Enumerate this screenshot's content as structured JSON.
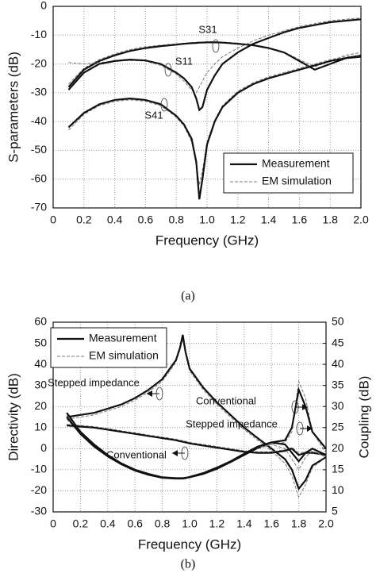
{
  "chart_data": [
    {
      "type": "line",
      "caption": "(a)",
      "xlabel": "Frequency (GHz)",
      "ylabel": "S-parameters (dB)",
      "xlim": [
        0,
        2
      ],
      "ylim": [
        -70,
        0
      ],
      "xticks": [
        0,
        0.2,
        0.4,
        0.6,
        0.8,
        {
          "value": 1,
          "label": "1.0"
        },
        1.2,
        1.4,
        1.6,
        1.8,
        {
          "value": 2,
          "label": "2.0"
        }
      ],
      "yticks": [
        0,
        -10,
        -20,
        -30,
        -40,
        -50,
        -60,
        -70
      ],
      "grid": true,
      "legend": {
        "position": "lower right",
        "entries": [
          {
            "label": "Measurement",
            "color": "#111111",
            "dashed": false
          },
          {
            "label": "EM simulation",
            "color": "#777777",
            "dashed": true
          }
        ]
      },
      "x": [
        0.1,
        0.2,
        0.3,
        0.4,
        0.5,
        0.6,
        0.7,
        0.8,
        0.85,
        0.9,
        0.93,
        0.95,
        0.97,
        1.0,
        1.05,
        1.1,
        1.2,
        1.3,
        1.4,
        1.5,
        1.6,
        1.7,
        1.8,
        1.9,
        2.0
      ],
      "series": [
        {
          "name": "S31",
          "measurement": [
            -28,
            -22,
            -19,
            -17,
            -15.5,
            -14.5,
            -13.8,
            -13.3,
            -13,
            -12.8,
            -12.7,
            -12.6,
            -12.6,
            -12.5,
            -12.5,
            -12.6,
            -13,
            -13.5,
            -14.5,
            -16,
            -19,
            -22,
            -20,
            -18,
            -17
          ],
          "simulation": [
            -27,
            -21.5,
            -18.5,
            -16.5,
            -15,
            -14,
            -13.5,
            -13,
            -12.8,
            -12.6,
            -12.5,
            -12.4,
            -12.4,
            -12.3,
            -12.3,
            -12.4,
            -12.8,
            -13.3,
            -14.3,
            -15.8,
            -18.5,
            -21,
            -19,
            -17,
            -16
          ]
        },
        {
          "name": "S11",
          "measurement": [
            -29,
            -23,
            -20,
            -19,
            -18.5,
            -18.8,
            -20,
            -23,
            -25,
            -28,
            -32,
            -36,
            -35,
            -29,
            -24,
            -20,
            -16,
            -13,
            -11,
            -9,
            -7.5,
            -6.5,
            -5.5,
            -5,
            -4.5
          ],
          "simulation": [
            -19.5,
            -20,
            -19.5,
            -19,
            -18.8,
            -19,
            -20.5,
            -23.5,
            -26,
            -29,
            -30,
            -28,
            -26,
            -23,
            -20,
            -17.5,
            -14.5,
            -12,
            -10,
            -8.5,
            -7,
            -6,
            -5,
            -4.5,
            -4
          ]
        },
        {
          "name": "S41",
          "measurement": [
            -42,
            -37,
            -34,
            -32.5,
            -32,
            -32.5,
            -34,
            -38,
            -41,
            -46,
            -54,
            -67,
            -60,
            -48,
            -40,
            -35,
            -30,
            -27,
            -25,
            -23.5,
            -22,
            -20.5,
            -19,
            -18,
            -17.5
          ],
          "simulation": [
            -43,
            -37.5,
            -34.5,
            -33,
            -32.5,
            -33,
            -34.5,
            -38.5,
            -41.5,
            -47,
            -55,
            -62,
            -57,
            -47,
            -39.5,
            -34.5,
            -29.5,
            -26.5,
            -24.5,
            -23,
            -21.5,
            -20,
            -18.5,
            -17.5,
            -17
          ]
        }
      ]
    },
    {
      "type": "line",
      "caption": "(b)",
      "xlabel": "Frequency (GHz)",
      "ylabel": "Directivity (dB)",
      "y2label": "Coupling (dB)",
      "xlim": [
        0,
        2
      ],
      "ylim": [
        -30,
        60
      ],
      "y2lim": [
        5,
        50
      ],
      "xticks": [
        0,
        0.2,
        0.4,
        0.6,
        0.8,
        {
          "value": 1,
          "label": "1.0"
        },
        1.2,
        1.4,
        1.6,
        1.8,
        {
          "value": 2,
          "label": "2.0"
        }
      ],
      "yticks": [
        -30,
        -20,
        -10,
        0,
        10,
        20,
        30,
        40,
        50,
        60
      ],
      "y2ticks": [
        5,
        10,
        15,
        20,
        25,
        30,
        35,
        40,
        45,
        50
      ],
      "grid": true,
      "legend": {
        "position": "upper left",
        "entries": [
          {
            "label": "Measurement",
            "color": "#111111",
            "dashed": false
          },
          {
            "label": "EM simulation",
            "color": "#777777",
            "dashed": true
          }
        ]
      },
      "x": [
        0.1,
        0.2,
        0.3,
        0.4,
        0.5,
        0.6,
        0.7,
        0.8,
        0.9,
        0.93,
        0.95,
        0.97,
        1.0,
        1.1,
        1.2,
        1.3,
        1.4,
        1.5,
        1.6,
        1.7,
        1.75,
        1.8,
        1.85,
        1.9,
        2.0
      ],
      "series": [
        {
          "name": "Stepped impedance",
          "axis": "y",
          "measurement": [
            15,
            16,
            17,
            19,
            21,
            24,
            28,
            33,
            42,
            48,
            54,
            46,
            38,
            29,
            22,
            16,
            10,
            5,
            0,
            -5,
            -10,
            -19,
            -15,
            -8,
            -4
          ],
          "simulation": [
            14,
            15,
            16,
            18,
            20,
            23,
            27,
            32,
            41,
            47,
            52,
            45,
            37,
            28,
            21,
            15,
            9,
            4,
            -1,
            -7,
            -13,
            -23,
            -17,
            -9,
            -4
          ]
        },
        {
          "name": "Conventional",
          "axis": "y",
          "measurement": [
            11,
            10.5,
            10,
            9,
            8,
            7,
            6,
            5,
            4,
            3.5,
            3.3,
            3,
            2.5,
            1.5,
            0.5,
            -0.5,
            -1.5,
            -2,
            -2,
            -1,
            0,
            -3,
            -2,
            -2,
            -3
          ],
          "simulation": [
            11.5,
            11,
            10.5,
            9.5,
            8.5,
            7.5,
            6.5,
            5.5,
            4.5,
            4,
            3.8,
            3.5,
            3,
            2,
            1,
            0,
            -1,
            -1.5,
            -1.5,
            -0.5,
            0.5,
            -2,
            -1.5,
            -1.5,
            -2.5
          ]
        },
        {
          "name": "Conventional",
          "axis": "y2",
          "measurement": [
            28.5,
            24,
            21,
            18.5,
            16.5,
            15,
            14,
            13.2,
            13,
            13,
            13,
            13.1,
            13.2,
            14,
            15.2,
            16.8,
            18.5,
            20.2,
            21.5,
            22,
            25,
            34,
            30,
            24,
            20
          ],
          "simulation": [
            28,
            24,
            21,
            18.5,
            16.5,
            15,
            14,
            13.2,
            13,
            13,
            13,
            13.1,
            13.2,
            14,
            15.2,
            16.8,
            18.5,
            20,
            21,
            21.5,
            24,
            36,
            32,
            24,
            19
          ]
        },
        {
          "name": "Stepped impedance",
          "axis": "y2",
          "measurement": [
            27.5,
            23.5,
            20.5,
            18.2,
            16.3,
            14.8,
            13.8,
            13.1,
            12.9,
            12.9,
            12.9,
            13,
            13.3,
            14.2,
            15.5,
            17,
            18.8,
            20.5,
            21.5,
            21,
            19,
            17,
            19,
            20,
            18.5
          ],
          "simulation": [
            27,
            23.5,
            20.5,
            18.2,
            16.3,
            14.8,
            13.8,
            13.1,
            12.9,
            12.9,
            12.9,
            13,
            13.3,
            14.2,
            15.5,
            17,
            18.8,
            20.3,
            21,
            20,
            17.5,
            15,
            18,
            19.5,
            18
          ]
        }
      ]
    }
  ]
}
